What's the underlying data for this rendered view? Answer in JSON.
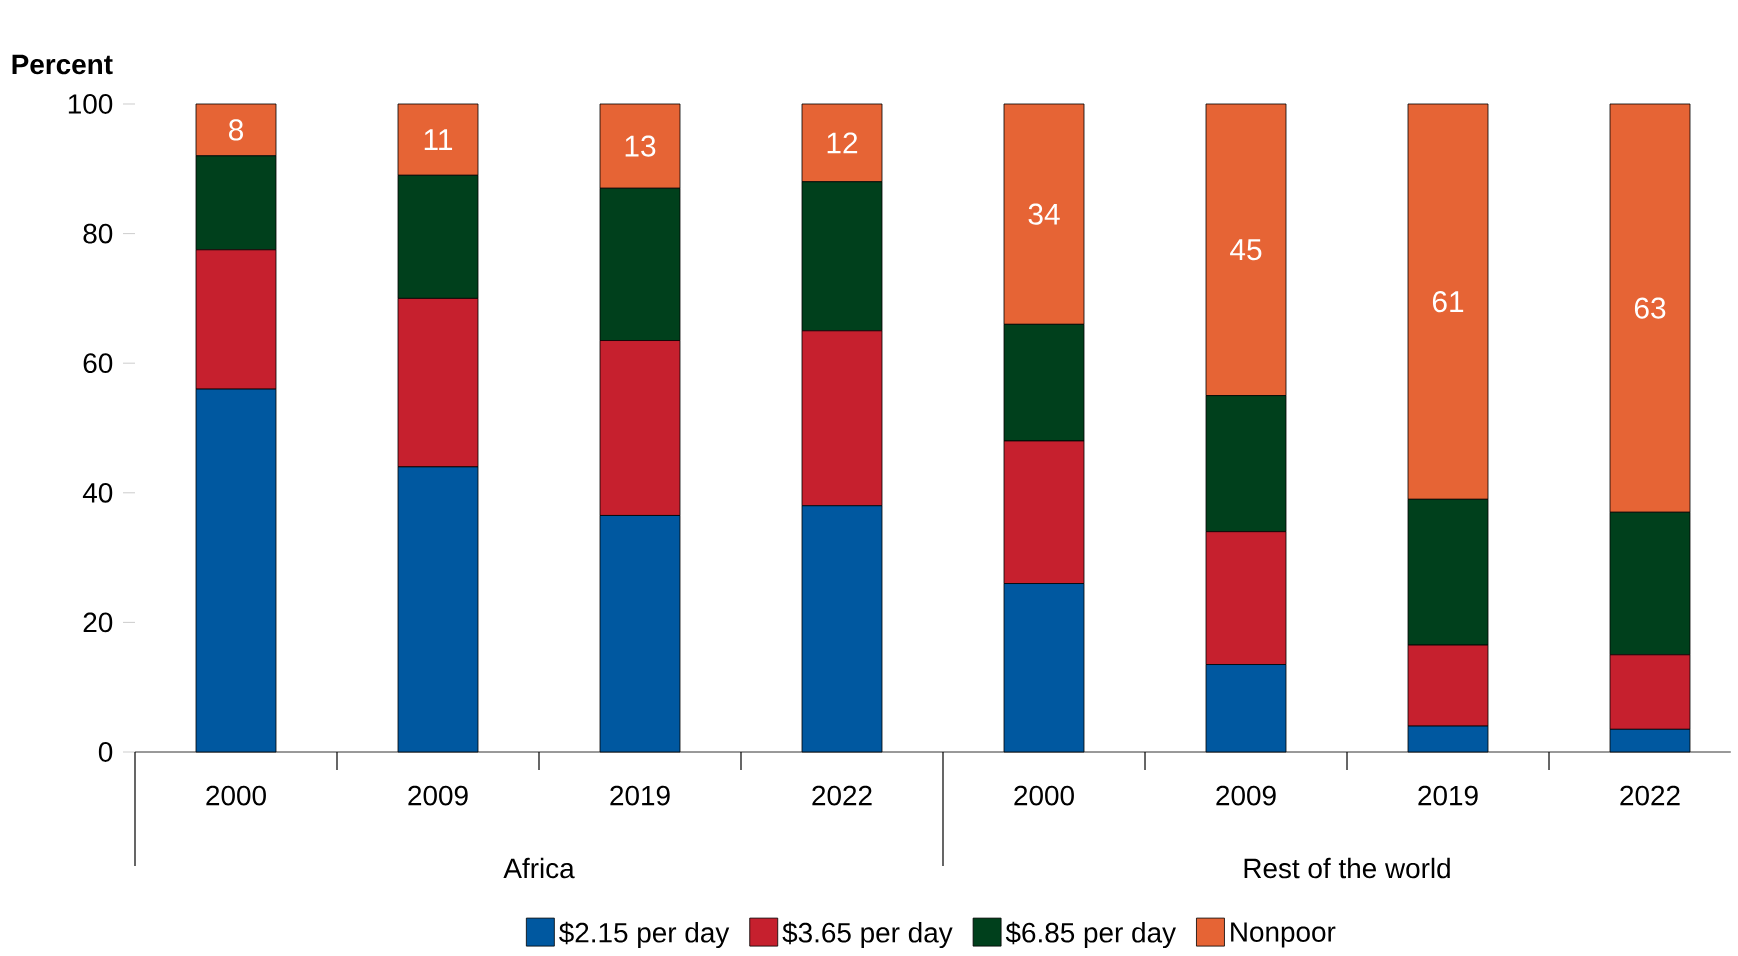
{
  "chart_data": {
    "type": "bar",
    "stacked": true,
    "ylabel": "Percent",
    "categories": [
      "2000",
      "2009",
      "2019",
      "2022",
      "2000",
      "2009",
      "2019",
      "2022"
    ],
    "annotations": [
      "Africa",
      "Rest of the world"
    ],
    "ylim": [
      0,
      100
    ],
    "yticks": [
      0,
      20,
      40,
      60,
      80,
      100
    ],
    "legend": "bottom",
    "series": [
      {
        "name": "$2.15 per day",
        "color": "#0058a0",
        "values": [
          56,
          44,
          36.5,
          38,
          26,
          13.5,
          4,
          3.5
        ]
      },
      {
        "name": "$3.65 per day",
        "color": "#c6202e",
        "values": [
          21.5,
          26,
          27,
          27,
          22,
          20.5,
          12.5,
          11.5
        ]
      },
      {
        "name": "$6.85 per day",
        "color": "#00401c",
        "values": [
          14.5,
          19,
          23.5,
          23,
          18,
          21,
          22.5,
          22
        ]
      },
      {
        "name": "Nonpoor",
        "color": "#e66435",
        "values": [
          8,
          11,
          13,
          12,
          34,
          45,
          61,
          63
        ],
        "value_labels": [
          "8",
          "11",
          "13",
          "12",
          "34",
          "45",
          "61",
          "63"
        ]
      }
    ]
  }
}
